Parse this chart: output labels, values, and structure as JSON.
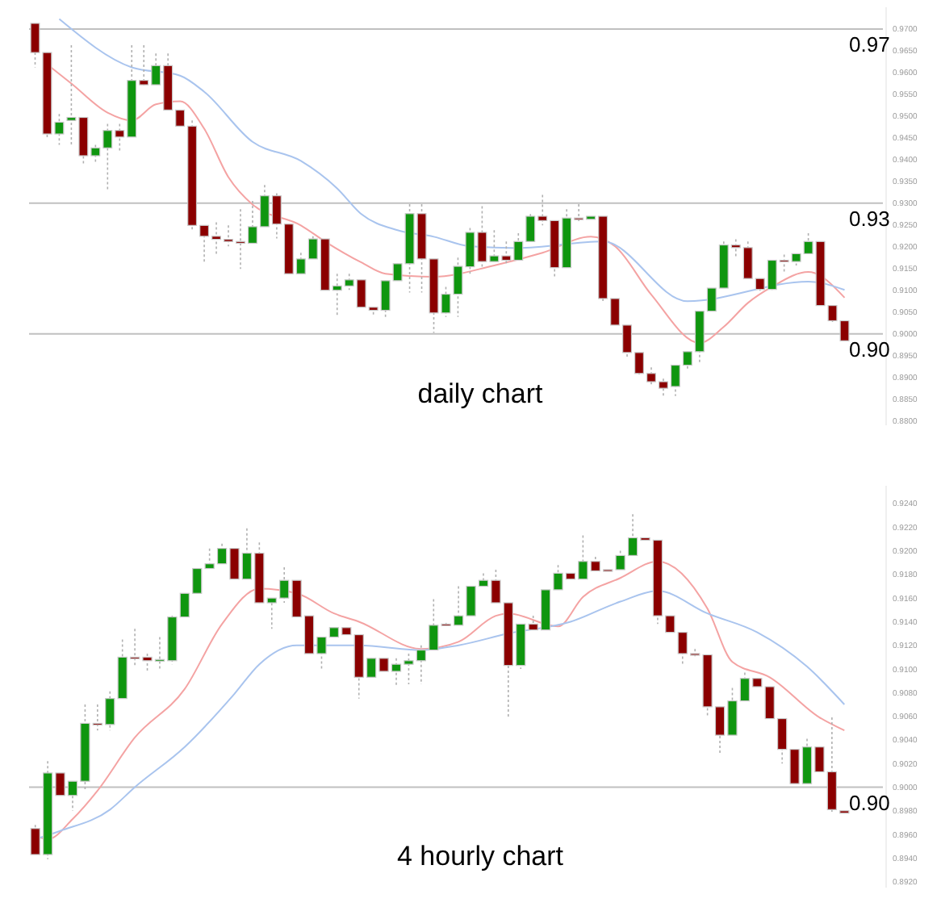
{
  "chart_data": [
    {
      "type": "candlestick",
      "title": "daily chart",
      "categories": [
        null,
        null,
        null,
        null,
        null,
        null,
        null,
        null,
        null,
        null,
        null,
        null,
        null,
        null,
        null,
        null,
        null,
        null,
        null,
        null,
        null,
        null,
        null,
        null,
        null,
        null,
        null,
        null,
        null,
        null,
        null,
        null,
        null,
        null,
        null,
        null,
        null,
        null,
        null,
        null,
        null,
        null,
        null,
        null,
        null,
        null,
        null,
        null,
        null,
        null,
        null,
        null,
        null,
        null,
        null,
        null,
        null,
        null,
        null,
        null,
        null,
        null,
        null,
        null,
        null,
        null,
        null,
        null
      ],
      "ohlc": [
        [
          0.9713,
          0.9713,
          0.9612,
          0.9646
        ],
        [
          0.9646,
          0.9646,
          0.9446,
          0.9459
        ],
        [
          0.9459,
          0.9505,
          0.9434,
          0.9486
        ],
        [
          0.949,
          0.9663,
          0.9434,
          0.9497
        ],
        [
          0.9497,
          0.9497,
          0.9391,
          0.9409
        ],
        [
          0.9409,
          0.9434,
          0.9391,
          0.9427
        ],
        [
          0.9427,
          0.9482,
          0.933,
          0.9467
        ],
        [
          0.9467,
          0.9482,
          0.9416,
          0.9452
        ],
        [
          0.9452,
          0.9663,
          0.9452,
          0.9582
        ],
        [
          0.9582,
          0.9663,
          0.9571,
          0.9572
        ],
        [
          0.9572,
          0.9644,
          0.9572,
          0.9616
        ],
        [
          0.9616,
          0.9644,
          0.9514,
          0.9514
        ],
        [
          0.9514,
          0.9514,
          0.9477,
          0.9477
        ],
        [
          0.9477,
          0.949,
          0.9238,
          0.9249
        ],
        [
          0.9249,
          0.9249,
          0.9164,
          0.9224
        ],
        [
          0.9224,
          0.9256,
          0.9182,
          0.9217
        ],
        [
          0.9217,
          0.9249,
          0.9201,
          0.9212
        ],
        [
          0.9212,
          0.9286,
          0.9149,
          0.9208
        ],
        [
          0.9208,
          0.9305,
          0.9208,
          0.9246
        ],
        [
          0.9246,
          0.9342,
          0.9246,
          0.9317
        ],
        [
          0.9317,
          0.9323,
          0.9219,
          0.9252
        ],
        [
          0.9252,
          0.9252,
          0.9138,
          0.9138
        ],
        [
          0.9138,
          0.9186,
          0.9138,
          0.9172
        ],
        [
          0.9172,
          0.9224,
          0.9172,
          0.9218
        ],
        [
          0.9218,
          0.9218,
          0.91,
          0.91
        ],
        [
          0.91,
          0.9138,
          0.9039,
          0.911
        ],
        [
          0.911,
          0.9138,
          0.9101,
          0.9124
        ],
        [
          0.9124,
          0.9124,
          0.9061,
          0.9061
        ],
        [
          0.9061,
          0.9061,
          0.9039,
          0.9054
        ],
        [
          0.9054,
          0.9122,
          0.9039,
          0.9122
        ],
        [
          0.9122,
          0.9161,
          0.9122,
          0.9161
        ],
        [
          0.9161,
          0.9298,
          0.9095,
          0.9276
        ],
        [
          0.9276,
          0.9298,
          0.9095,
          0.9172
        ],
        [
          0.9172,
          0.9172,
          0.9002,
          0.9048
        ],
        [
          0.9048,
          0.9108,
          0.9039,
          0.9091
        ],
        [
          0.9091,
          0.9175,
          0.9039,
          0.9155
        ],
        [
          0.9154,
          0.9243,
          0.9138,
          0.9233
        ],
        [
          0.9233,
          0.9293,
          0.915,
          0.9166
        ],
        [
          0.9166,
          0.9238,
          0.9166,
          0.9179
        ],
        [
          0.9179,
          0.9212,
          0.9157,
          0.9169
        ],
        [
          0.9169,
          0.9231,
          0.9169,
          0.9212
        ],
        [
          0.9212,
          0.9275,
          0.9212,
          0.927
        ],
        [
          0.927,
          0.9319,
          0.9249,
          0.926
        ],
        [
          0.926,
          0.926,
          0.9132,
          0.9152
        ],
        [
          0.9152,
          0.9286,
          0.9152,
          0.9266
        ],
        [
          0.9266,
          0.9298,
          0.9256,
          0.9263
        ],
        [
          0.9263,
          0.927,
          0.9263,
          0.927
        ],
        [
          0.927,
          0.927,
          0.9071,
          0.9081
        ],
        [
          0.9081,
          0.9081,
          0.902,
          0.902
        ],
        [
          0.902,
          0.902,
          0.8946,
          0.8957
        ],
        [
          0.8957,
          0.8957,
          0.8901,
          0.8909
        ],
        [
          0.8909,
          0.8923,
          0.8883,
          0.889
        ],
        [
          0.889,
          0.8897,
          0.8857,
          0.8875
        ],
        [
          0.8879,
          0.8928,
          0.8857,
          0.8928
        ],
        [
          0.8928,
          0.8959,
          0.8916,
          0.8959
        ],
        [
          0.8959,
          0.9052,
          0.8931,
          0.9052
        ],
        [
          0.9052,
          0.9105,
          0.9052,
          0.9105
        ],
        [
          0.9105,
          0.9212,
          0.9105,
          0.9204
        ],
        [
          0.9204,
          0.9217,
          0.9175,
          0.9198
        ],
        [
          0.9198,
          0.9212,
          0.9127,
          0.9127
        ],
        [
          0.9127,
          0.9127,
          0.9094,
          0.9102
        ],
        [
          0.9102,
          0.9169,
          0.9101,
          0.9169
        ],
        [
          0.9169,
          0.9182,
          0.9138,
          0.9166
        ],
        [
          0.9166,
          0.9184,
          0.9157,
          0.9184
        ],
        [
          0.9184,
          0.9231,
          0.9184,
          0.9212
        ],
        [
          0.9212,
          0.9212,
          0.9065,
          0.9065
        ],
        [
          0.9065,
          0.9065,
          0.9027,
          0.903
        ],
        [
          0.903,
          0.903,
          0.8984,
          0.8984
        ]
      ],
      "series": [
        {
          "type": "line",
          "color": "#f4a3a3",
          "values": [
            null,
            0.9619,
            null,
            0.9575,
            null,
            null,
            0.9508,
            null,
            0.949,
            null,
            0.9527,
            null,
            0.9534,
            null,
            0.9471,
            null,
            0.936,
            null,
            0.9297,
            null,
            null,
            null,
            0.9249,
            null,
            0.9212,
            null,
            null,
            0.9164,
            null,
            0.9138,
            null,
            null,
            null,
            0.9131,
            null,
            null,
            null,
            null,
            0.9157,
            null,
            null,
            null,
            0.9186,
            null,
            null,
            null,
            0.9223,
            null,
            0.9201,
            null,
            null,
            0.909,
            null,
            null,
            null,
            0.8979,
            null,
            0.9016,
            null,
            0.9071,
            null,
            0.9108,
            null,
            null,
            0.9142,
            null,
            null,
            0.9083
          ]
        },
        {
          "type": "line",
          "color": "#a9c4ee",
          "values": [
            null,
            null,
            0.9723,
            null,
            null,
            null,
            null,
            null,
            0.9612,
            null,
            null,
            null,
            0.9593,
            null,
            0.9556,
            null,
            null,
            null,
            0.9441,
            null,
            null,
            null,
            0.9397,
            null,
            null,
            0.9334,
            null,
            0.9275,
            null,
            null,
            0.9238,
            null,
            null,
            0.9223,
            null,
            null,
            0.9201,
            null,
            null,
            null,
            0.9197,
            null,
            null,
            null,
            null,
            null,
            null,
            0.9212,
            null,
            null,
            null,
            null,
            null,
            null,
            0.9075,
            null,
            null,
            null,
            null,
            null,
            null,
            null,
            null,
            null,
            0.912,
            null,
            null,
            0.9101
          ]
        }
      ],
      "ylim": [
        0.879,
        0.975
      ],
      "yticks": [
        {
          "value": 0.97,
          "label": "0.9700"
        },
        {
          "value": 0.965,
          "label": "0.9650"
        },
        {
          "value": 0.96,
          "label": "0.9600"
        },
        {
          "value": 0.955,
          "label": "0.9550"
        },
        {
          "value": 0.95,
          "label": "0.9500"
        },
        {
          "value": 0.945,
          "label": "0.9450"
        },
        {
          "value": 0.94,
          "label": "0.9400"
        },
        {
          "value": 0.935,
          "label": "0.9350"
        },
        {
          "value": 0.93,
          "label": "0.9300"
        },
        {
          "value": 0.925,
          "label": "0.9250"
        },
        {
          "value": 0.92,
          "label": "0.9200"
        },
        {
          "value": 0.915,
          "label": "0.9150"
        },
        {
          "value": 0.91,
          "label": "0.9100"
        },
        {
          "value": 0.905,
          "label": "0.9050"
        },
        {
          "value": 0.9,
          "label": "0.9000"
        },
        {
          "value": 0.895,
          "label": "0.8950"
        },
        {
          "value": 0.89,
          "label": "0.8900"
        },
        {
          "value": 0.885,
          "label": "0.8850"
        },
        {
          "value": 0.88,
          "label": "0.8800"
        }
      ],
      "ref_lines": [
        {
          "axis": "y",
          "value": 0.97,
          "label": "0.97",
          "color": "#c0c0c0"
        },
        {
          "axis": "y",
          "value": 0.93,
          "label": "0.93",
          "color": "#c0c0c0"
        },
        {
          "axis": "y",
          "value": 0.9,
          "label": "0.90",
          "color": "#c0c0c0"
        }
      ]
    },
    {
      "type": "candlestick",
      "title": "4 hourly chart",
      "categories": [
        null,
        null,
        null,
        null,
        null,
        null,
        null,
        null,
        null,
        null,
        null,
        null,
        null,
        null,
        null,
        null,
        null,
        null,
        null,
        null,
        null,
        null,
        null,
        null,
        null,
        null,
        null,
        null,
        null,
        null,
        null,
        null,
        null,
        null,
        null,
        null,
        null,
        null,
        null,
        null,
        null,
        null,
        null,
        null,
        null,
        null,
        null,
        null,
        null,
        null,
        null,
        null,
        null,
        null,
        null,
        null,
        null,
        null,
        null,
        null,
        null,
        null,
        null,
        null,
        null,
        null
      ],
      "ohlc": [
        [
          0.8965,
          0.8968,
          0.8943,
          0.8943
        ],
        [
          0.8943,
          0.9022,
          0.8939,
          0.9012
        ],
        [
          0.9012,
          0.9012,
          0.8993,
          0.8993
        ],
        [
          0.8993,
          0.9005,
          0.898,
          0.9005
        ],
        [
          0.9005,
          0.907,
          0.8997,
          0.9054
        ],
        [
          0.9054,
          0.907,
          0.9048,
          0.9053
        ],
        [
          0.9053,
          0.9081,
          0.9048,
          0.9075
        ],
        [
          0.9075,
          0.9125,
          0.9075,
          0.911
        ],
        [
          0.911,
          0.9134,
          0.9102,
          0.9109
        ],
        [
          0.911,
          0.9113,
          0.9098,
          0.9107
        ],
        [
          0.9107,
          0.9127,
          0.91,
          0.9108
        ],
        [
          0.9107,
          0.9145,
          0.9104,
          0.9144
        ],
        [
          0.9144,
          0.9164,
          0.9144,
          0.9164
        ],
        [
          0.9164,
          0.9185,
          0.9164,
          0.9185
        ],
        [
          0.9185,
          0.9202,
          0.9185,
          0.9189
        ],
        [
          0.9189,
          0.9206,
          0.9189,
          0.9202
        ],
        [
          0.9202,
          0.9202,
          0.9176,
          0.9176
        ],
        [
          0.9176,
          0.9219,
          0.9176,
          0.9198
        ],
        [
          0.9198,
          0.9207,
          0.9154,
          0.9156
        ],
        [
          0.9156,
          0.916,
          0.9134,
          0.916
        ],
        [
          0.916,
          0.9186,
          0.9156,
          0.9175
        ],
        [
          0.9175,
          0.9175,
          0.9144,
          0.9144
        ],
        [
          0.9145,
          0.9145,
          0.9113,
          0.9113
        ],
        [
          0.9113,
          0.9127,
          0.91,
          0.9127
        ],
        [
          0.9127,
          0.9135,
          0.9127,
          0.9135
        ],
        [
          0.9135,
          0.9135,
          0.9129,
          0.9129
        ],
        [
          0.9129,
          0.9129,
          0.9075,
          0.9093
        ],
        [
          0.9093,
          0.9109,
          0.9093,
          0.9109
        ],
        [
          0.9109,
          0.9109,
          0.9098,
          0.9098
        ],
        [
          0.9098,
          0.9109,
          0.9085,
          0.9104
        ],
        [
          0.9104,
          0.9113,
          0.9087,
          0.9107
        ],
        [
          0.9107,
          0.912,
          0.9087,
          0.9116
        ],
        [
          0.9116,
          0.9159,
          0.9116,
          0.9137
        ],
        [
          0.9138,
          0.9139,
          0.9136,
          0.9137
        ],
        [
          0.9137,
          0.917,
          0.9137,
          0.9145
        ],
        [
          0.9145,
          0.917,
          0.9145,
          0.917
        ],
        [
          0.917,
          0.9181,
          0.917,
          0.9175
        ],
        [
          0.9175,
          0.9184,
          0.9156,
          0.9156
        ],
        [
          0.9156,
          0.9156,
          0.9059,
          0.9103
        ],
        [
          0.9103,
          0.9138,
          0.91,
          0.9138
        ],
        [
          0.9138,
          0.9145,
          0.9133,
          0.9133
        ],
        [
          0.9133,
          0.9167,
          0.9133,
          0.9167
        ],
        [
          0.9167,
          0.9188,
          0.9167,
          0.9181
        ],
        [
          0.9181,
          0.9181,
          0.9176,
          0.9176
        ],
        [
          0.9176,
          0.9213,
          0.9176,
          0.9191
        ],
        [
          0.9191,
          0.9195,
          0.9183,
          0.9183
        ],
        [
          0.9184,
          0.9184,
          0.9183,
          0.9183
        ],
        [
          0.9184,
          0.92,
          0.9184,
          0.9196
        ],
        [
          0.9196,
          0.9231,
          0.9196,
          0.9211
        ],
        [
          0.9211,
          0.9211,
          0.9209,
          0.9209
        ],
        [
          0.9209,
          0.9209,
          0.9138,
          0.9145
        ],
        [
          0.9145,
          0.9145,
          0.9131,
          0.9131
        ],
        [
          0.9131,
          0.9131,
          0.9104,
          0.9113
        ],
        [
          0.9113,
          0.9117,
          0.9109,
          0.9112
        ],
        [
          0.9112,
          0.9112,
          0.9059,
          0.9068
        ],
        [
          0.9068,
          0.9068,
          0.9029,
          0.9044
        ],
        [
          0.9044,
          0.9084,
          0.9044,
          0.9073
        ],
        [
          0.9073,
          0.9097,
          0.9073,
          0.9092
        ],
        [
          0.9092,
          0.9092,
          0.9085,
          0.9085
        ],
        [
          0.9085,
          0.9085,
          0.9058,
          0.9058
        ],
        [
          0.9058,
          0.9058,
          0.902,
          0.9032
        ],
        [
          0.9032,
          0.9032,
          0.9003,
          0.9003
        ],
        [
          0.9003,
          0.9041,
          0.9003,
          0.9034
        ],
        [
          0.9034,
          0.9034,
          0.9013,
          0.9013
        ],
        [
          0.9013,
          0.9059,
          0.8978,
          0.8981
        ],
        [
          0.898,
          0.898,
          0.8978,
          0.8978
        ]
      ],
      "series": [
        {
          "type": "line",
          "color": "#f4a3a3",
          "values": [
            0.8959,
            0.8956,
            null,
            0.8973,
            null,
            0.8997,
            null,
            null,
            0.9042,
            null,
            null,
            null,
            0.9083,
            null,
            null,
            0.9138,
            null,
            null,
            0.9168,
            null,
            null,
            0.9164,
            null,
            null,
            0.9147,
            null,
            0.914,
            null,
            null,
            null,
            null,
            0.9117,
            null,
            null,
            0.9123,
            null,
            null,
            0.9145,
            0.9147,
            null,
            null,
            null,
            0.9136,
            null,
            0.9161,
            null,
            null,
            0.9177,
            null,
            null,
            0.9191,
            null,
            null,
            null,
            0.9151,
            null,
            0.9106,
            null,
            null,
            0.9093,
            null,
            null,
            null,
            0.9059,
            null,
            0.9048
          ]
        },
        {
          "type": "line",
          "color": "#a9c4ee",
          "values": [
            0.8956,
            null,
            0.8963,
            null,
            null,
            null,
            0.8981,
            null,
            0.9,
            null,
            null,
            null,
            0.9034,
            null,
            null,
            null,
            0.9079,
            null,
            0.9104,
            null,
            null,
            0.912,
            null,
            null,
            null,
            null,
            0.912,
            null,
            null,
            null,
            null,
            0.9116,
            null,
            null,
            0.912,
            null,
            null,
            null,
            0.913,
            null,
            null,
            null,
            null,
            0.914,
            null,
            null,
            null,
            0.9157,
            null,
            null,
            0.9166,
            null,
            null,
            null,
            0.9147,
            null,
            null,
            null,
            0.9131,
            null,
            null,
            null,
            0.9102,
            null,
            null,
            0.907
          ]
        }
      ],
      "ylim": [
        0.8915,
        0.9255
      ],
      "yticks": [
        {
          "value": 0.924,
          "label": "0.9240"
        },
        {
          "value": 0.922,
          "label": "0.9220"
        },
        {
          "value": 0.92,
          "label": "0.9200"
        },
        {
          "value": 0.918,
          "label": "0.9180"
        },
        {
          "value": 0.916,
          "label": "0.9160"
        },
        {
          "value": 0.914,
          "label": "0.9140"
        },
        {
          "value": 0.912,
          "label": "0.9120"
        },
        {
          "value": 0.91,
          "label": "0.9100"
        },
        {
          "value": 0.908,
          "label": "0.9080"
        },
        {
          "value": 0.906,
          "label": "0.9060"
        },
        {
          "value": 0.904,
          "label": "0.9040"
        },
        {
          "value": 0.902,
          "label": "0.9020"
        },
        {
          "value": 0.9,
          "label": "0.9000"
        },
        {
          "value": 0.898,
          "label": "0.8980"
        },
        {
          "value": 0.896,
          "label": "0.8960"
        },
        {
          "value": 0.894,
          "label": "0.8940"
        },
        {
          "value": 0.892,
          "label": "0.8920"
        }
      ],
      "ref_lines": [
        {
          "axis": "y",
          "value": 0.9,
          "label": "0.90",
          "color": "#c0c0c0"
        }
      ]
    }
  ]
}
